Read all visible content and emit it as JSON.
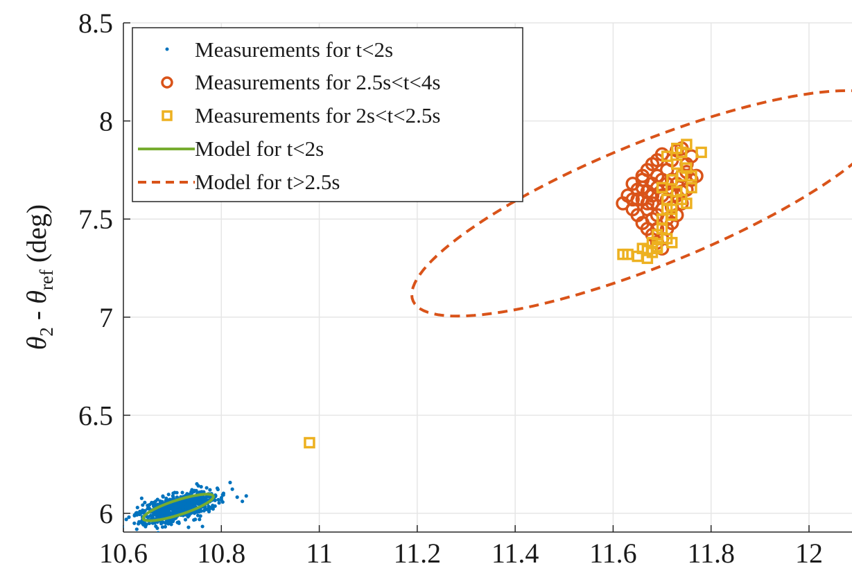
{
  "chart_data": {
    "type": "scatter",
    "title": "",
    "xlabel": "",
    "ylabel": {
      "theta": "θ",
      "sub2": "2",
      "minus": " - ",
      "subref": "ref",
      "unit": " (deg)"
    },
    "xlim": [
      10.6,
      12.1
    ],
    "ylim": [
      5.9,
      8.5
    ],
    "xticks": [
      10.6,
      10.8,
      11,
      11.2,
      11.4,
      11.6,
      11.8,
      12
    ],
    "xtick_labels": [
      "10.6",
      "10.8",
      "11",
      "11.2",
      "11.4",
      "11.6",
      "11.8",
      "12"
    ],
    "yticks": [
      6,
      6.5,
      7,
      7.5,
      8,
      8.5
    ],
    "ytick_labels": [
      "6",
      "6.5",
      "7",
      "7.5",
      "8",
      "8.5"
    ],
    "grid": true,
    "legend_position": "top-left",
    "legend": [
      "Measurements for t<2s",
      "Measurements for 2.5s<t<4s",
      "Measurements for 2s<t<2.5s",
      "Model for t<2s",
      "Model for t>2.5s"
    ],
    "series": [
      {
        "name": "Measurements for t<2s",
        "marker": "dot",
        "color": "#0072BD",
        "cluster": {
          "center": [
            10.712,
            6.03
          ],
          "major_sd": 0.052,
          "minor_sd": 0.026,
          "angle_deg": 43,
          "count": 700
        },
        "x": [
          10.64,
          10.66,
          10.66,
          10.68,
          10.69,
          10.7,
          10.72,
          10.73,
          10.74,
          10.75,
          10.76,
          10.78,
          10.77,
          10.71
        ],
        "y": [
          5.96,
          5.95,
          5.98,
          5.93,
          6.02,
          6.05,
          6.07,
          6.1,
          6.12,
          6.15,
          6.11,
          6.1,
          6.13,
          6.0
        ]
      },
      {
        "name": "Measurements for 2.5s<t<4s",
        "marker": "circle",
        "color": "#D95319",
        "x": [
          11.62,
          11.63,
          11.64,
          11.64,
          11.65,
          11.65,
          11.66,
          11.66,
          11.66,
          11.67,
          11.67,
          11.67,
          11.68,
          11.68,
          11.68,
          11.68,
          11.69,
          11.69,
          11.69,
          11.69,
          11.7,
          11.7,
          11.7,
          11.7,
          11.71,
          11.71,
          11.71,
          11.72,
          11.72,
          11.72,
          11.73,
          11.73,
          11.73,
          11.74,
          11.74,
          11.74,
          11.75,
          11.75,
          11.76,
          11.76,
          11.77,
          11.65,
          11.66,
          11.67,
          11.68,
          11.69,
          11.7,
          11.71,
          11.72,
          11.73,
          11.7,
          11.68,
          11.67,
          11.69,
          11.71,
          11.66,
          11.64,
          11.72,
          11.74,
          11.75
        ],
        "y": [
          7.58,
          7.62,
          7.68,
          7.55,
          7.65,
          7.52,
          7.6,
          7.48,
          7.7,
          7.45,
          7.55,
          7.75,
          7.42,
          7.5,
          7.62,
          7.78,
          7.38,
          7.52,
          7.66,
          7.8,
          7.4,
          7.55,
          7.7,
          7.83,
          7.45,
          7.6,
          7.75,
          7.48,
          7.64,
          7.8,
          7.52,
          7.68,
          7.85,
          7.58,
          7.72,
          7.86,
          7.65,
          7.78,
          7.7,
          7.82,
          7.72,
          7.6,
          7.72,
          7.64,
          7.58,
          7.45,
          7.62,
          7.5,
          7.56,
          7.62,
          7.35,
          7.68,
          7.58,
          7.72,
          7.68,
          7.66,
          7.6,
          7.7,
          7.64,
          7.74
        ]
      },
      {
        "name": "Measurements for 2s<t<2.5s",
        "marker": "square",
        "color": "#EDB120",
        "x": [
          10.98,
          11.62,
          11.63,
          11.65,
          11.66,
          11.67,
          11.67,
          11.68,
          11.68,
          11.69,
          11.69,
          11.7,
          11.7,
          11.7,
          11.71,
          11.71,
          11.71,
          11.72,
          11.72,
          11.72,
          11.73,
          11.73,
          11.73,
          11.74,
          11.74,
          11.74,
          11.75,
          11.75,
          11.75,
          11.76,
          11.76,
          11.78,
          11.72,
          11.71,
          11.69
        ],
        "y": [
          6.36,
          7.32,
          7.32,
          7.31,
          7.35,
          7.3,
          7.34,
          7.38,
          7.33,
          7.42,
          7.36,
          7.45,
          7.5,
          7.66,
          7.55,
          7.6,
          7.82,
          7.38,
          7.7,
          7.52,
          7.78,
          7.86,
          7.64,
          7.84,
          7.6,
          7.72,
          7.88,
          7.76,
          7.58,
          7.66,
          7.72,
          7.84,
          7.55,
          7.4,
          7.35
        ]
      },
      {
        "name": "Model for t<2s",
        "line": "solid",
        "color": "#77AC30",
        "ellipse": {
          "center": [
            10.712,
            6.03
          ],
          "a": 0.094,
          "b": 0.03,
          "angle_deg": 43
        }
      },
      {
        "name": "Model for t>2.5s",
        "line": "dashed",
        "color": "#D95319",
        "ellipse": {
          "center": [
            11.68,
            7.58
          ],
          "a": 0.72,
          "b": 0.23,
          "angle_deg": 50.5
        }
      }
    ]
  }
}
